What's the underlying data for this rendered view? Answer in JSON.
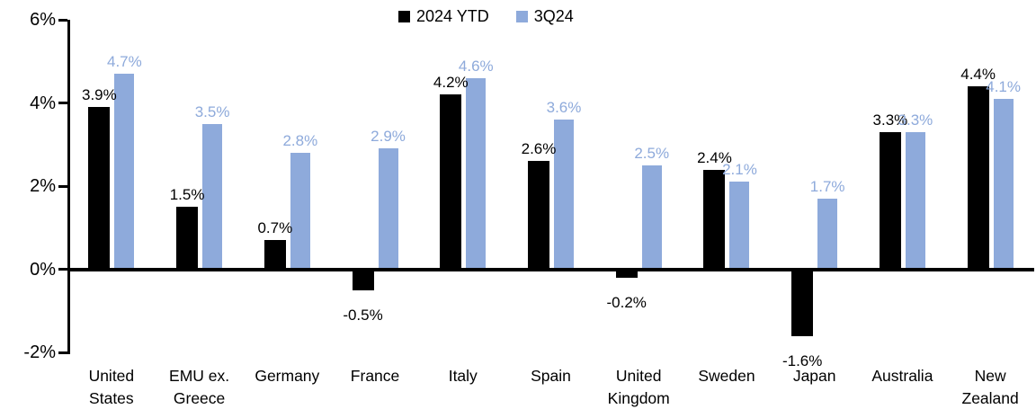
{
  "chart_data": {
    "type": "bar",
    "title": "",
    "xlabel": "",
    "ylabel": "",
    "ylim": [
      -2,
      6
    ],
    "grid": false,
    "legend_position": "top-center",
    "categories": [
      "United States",
      "EMU ex. Greece",
      "Germany",
      "France",
      "Italy",
      "Spain",
      "United Kingdom",
      "Sweden",
      "Japan",
      "Australia",
      "New Zealand"
    ],
    "category_lines": [
      [
        "United",
        "States"
      ],
      [
        "EMU ex.",
        "Greece"
      ],
      [
        "Germany"
      ],
      [
        "France"
      ],
      [
        "Italy"
      ],
      [
        "Spain"
      ],
      [
        "United",
        "Kingdom"
      ],
      [
        "Sweden"
      ],
      [
        "Japan"
      ],
      [
        "Australia"
      ],
      [
        "New",
        "Zealand"
      ]
    ],
    "series": [
      {
        "name": "2024 YTD",
        "color": "#000000",
        "values": [
          3.9,
          1.5,
          0.7,
          -0.5,
          4.2,
          2.6,
          -0.2,
          2.4,
          -1.6,
          3.3,
          4.4
        ],
        "labels": [
          "3.9%",
          "1.5%",
          "0.7%",
          "-0.5%",
          "4.2%",
          "2.6%",
          "-0.2%",
          "2.4%",
          "-1.6%",
          "3.3%",
          "4.4%"
        ]
      },
      {
        "name": "3Q24",
        "color": "#8EAADB",
        "values": [
          4.7,
          3.5,
          2.8,
          2.9,
          4.6,
          3.6,
          2.5,
          2.1,
          1.7,
          3.3,
          4.1
        ],
        "labels": [
          "4.7%",
          "3.5%",
          "2.8%",
          "2.9%",
          "4.6%",
          "3.6%",
          "2.5%",
          "2.1%",
          "1.7%",
          "3.3%",
          "4.1%"
        ]
      }
    ],
    "y_axis": {
      "ticks": [
        {
          "value": 6,
          "label": "6%"
        },
        {
          "value": 4,
          "label": "4%"
        },
        {
          "value": 2,
          "label": "2%"
        },
        {
          "value": 0,
          "label": "0%"
        },
        {
          "value": -2,
          "label": "-2%"
        }
      ]
    }
  },
  "colors": {
    "background": "#FFFFFF",
    "axis": "#000000",
    "series1": "#000000",
    "series2": "#8EAADB"
  }
}
